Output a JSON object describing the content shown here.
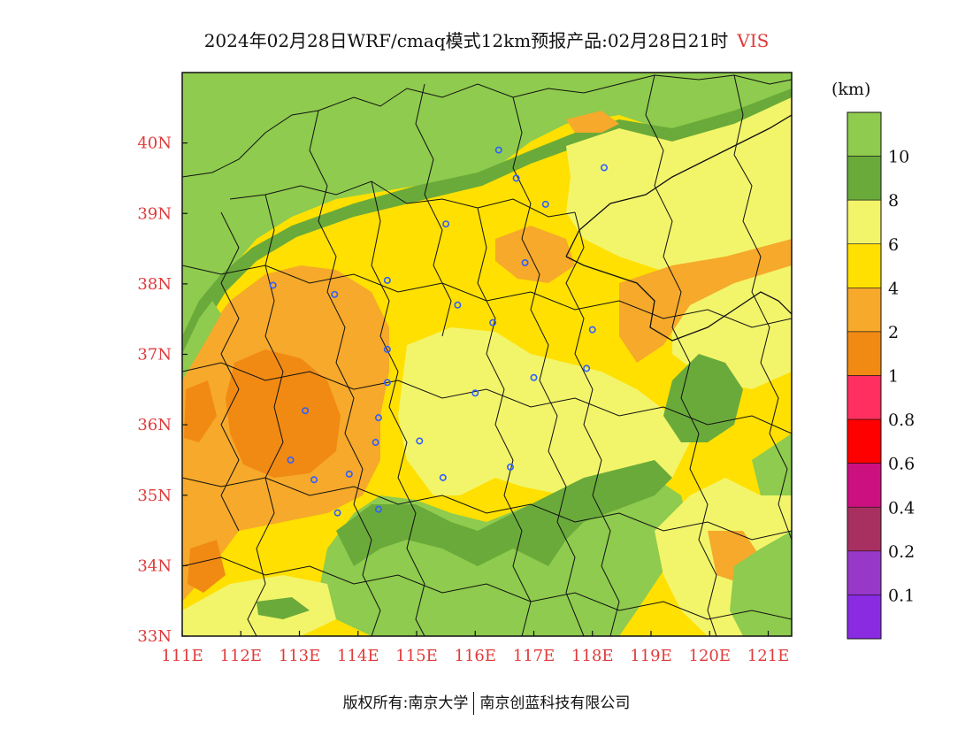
{
  "title": {
    "text": "2024年02月28日WRF/cmaq模式12km预报产品:02月28日21时",
    "variable": "VIS"
  },
  "colors": {
    "axis_label": "#e03a3a",
    "boundary": "#111111",
    "city_marker": "#2f5fff"
  },
  "map": {
    "lon_range": [
      111,
      121.4
    ],
    "lat_range": [
      33,
      41
    ],
    "x_ticks": [
      "111E",
      "112E",
      "113E",
      "114E",
      "115E",
      "116E",
      "117E",
      "118E",
      "119E",
      "120E",
      "121E"
    ],
    "y_ticks": [
      "33N",
      "34N",
      "35N",
      "36N",
      "37N",
      "38N",
      "39N",
      "40N"
    ],
    "fill_regions": [
      {
        "level": ">10 km",
        "color": "#8ecb4e"
      },
      {
        "level": "8-10 km",
        "color": "#6aaa3a"
      },
      {
        "level": "6-8 km",
        "color": "#f2f56a"
      },
      {
        "level": "4-6 km",
        "color": "#ffe000"
      },
      {
        "level": "2-4 km",
        "color": "#f6a92a"
      },
      {
        "level": "1-2 km",
        "color": "#f18a13"
      }
    ],
    "city_markers": [
      {
        "lon": 116.4,
        "lat": 39.9
      },
      {
        "lon": 116.7,
        "lat": 39.5
      },
      {
        "lon": 118.2,
        "lat": 39.65
      },
      {
        "lon": 117.2,
        "lat": 39.13
      },
      {
        "lon": 115.5,
        "lat": 38.85
      },
      {
        "lon": 116.85,
        "lat": 38.3
      },
      {
        "lon": 112.55,
        "lat": 37.98
      },
      {
        "lon": 113.6,
        "lat": 37.85
      },
      {
        "lon": 114.5,
        "lat": 38.05
      },
      {
        "lon": 115.7,
        "lat": 37.7
      },
      {
        "lon": 116.3,
        "lat": 37.45
      },
      {
        "lon": 118.0,
        "lat": 37.35
      },
      {
        "lon": 114.5,
        "lat": 37.07
      },
      {
        "lon": 117.0,
        "lat": 36.67
      },
      {
        "lon": 117.9,
        "lat": 36.8
      },
      {
        "lon": 114.5,
        "lat": 36.6
      },
      {
        "lon": 116.0,
        "lat": 36.45
      },
      {
        "lon": 113.1,
        "lat": 36.2
      },
      {
        "lon": 114.35,
        "lat": 36.1
      },
      {
        "lon": 114.3,
        "lat": 35.75
      },
      {
        "lon": 115.05,
        "lat": 35.77
      },
      {
        "lon": 112.85,
        "lat": 35.5
      },
      {
        "lon": 113.85,
        "lat": 35.3
      },
      {
        "lon": 115.45,
        "lat": 35.25
      },
      {
        "lon": 116.6,
        "lat": 35.4
      },
      {
        "lon": 113.25,
        "lat": 35.22
      },
      {
        "lon": 114.35,
        "lat": 34.8
      },
      {
        "lon": 113.65,
        "lat": 34.75
      }
    ]
  },
  "legend": {
    "unit": "(km)",
    "colors": [
      "#8ecb4e",
      "#6aaa3a",
      "#f2f56a",
      "#ffe000",
      "#f6a92a",
      "#f18a13",
      "#ff3060",
      "#ff0000",
      "#cc1080",
      "#a83060",
      "#9838c8",
      "#8a2be2"
    ],
    "labels": [
      "10",
      "8",
      "6",
      "4",
      "2",
      "1",
      "0.8",
      "0.6",
      "0.4",
      "0.2",
      "0.1"
    ]
  },
  "copyright": {
    "left": "版权所有:南京大学",
    "right": "南京创蓝科技有限公司"
  }
}
